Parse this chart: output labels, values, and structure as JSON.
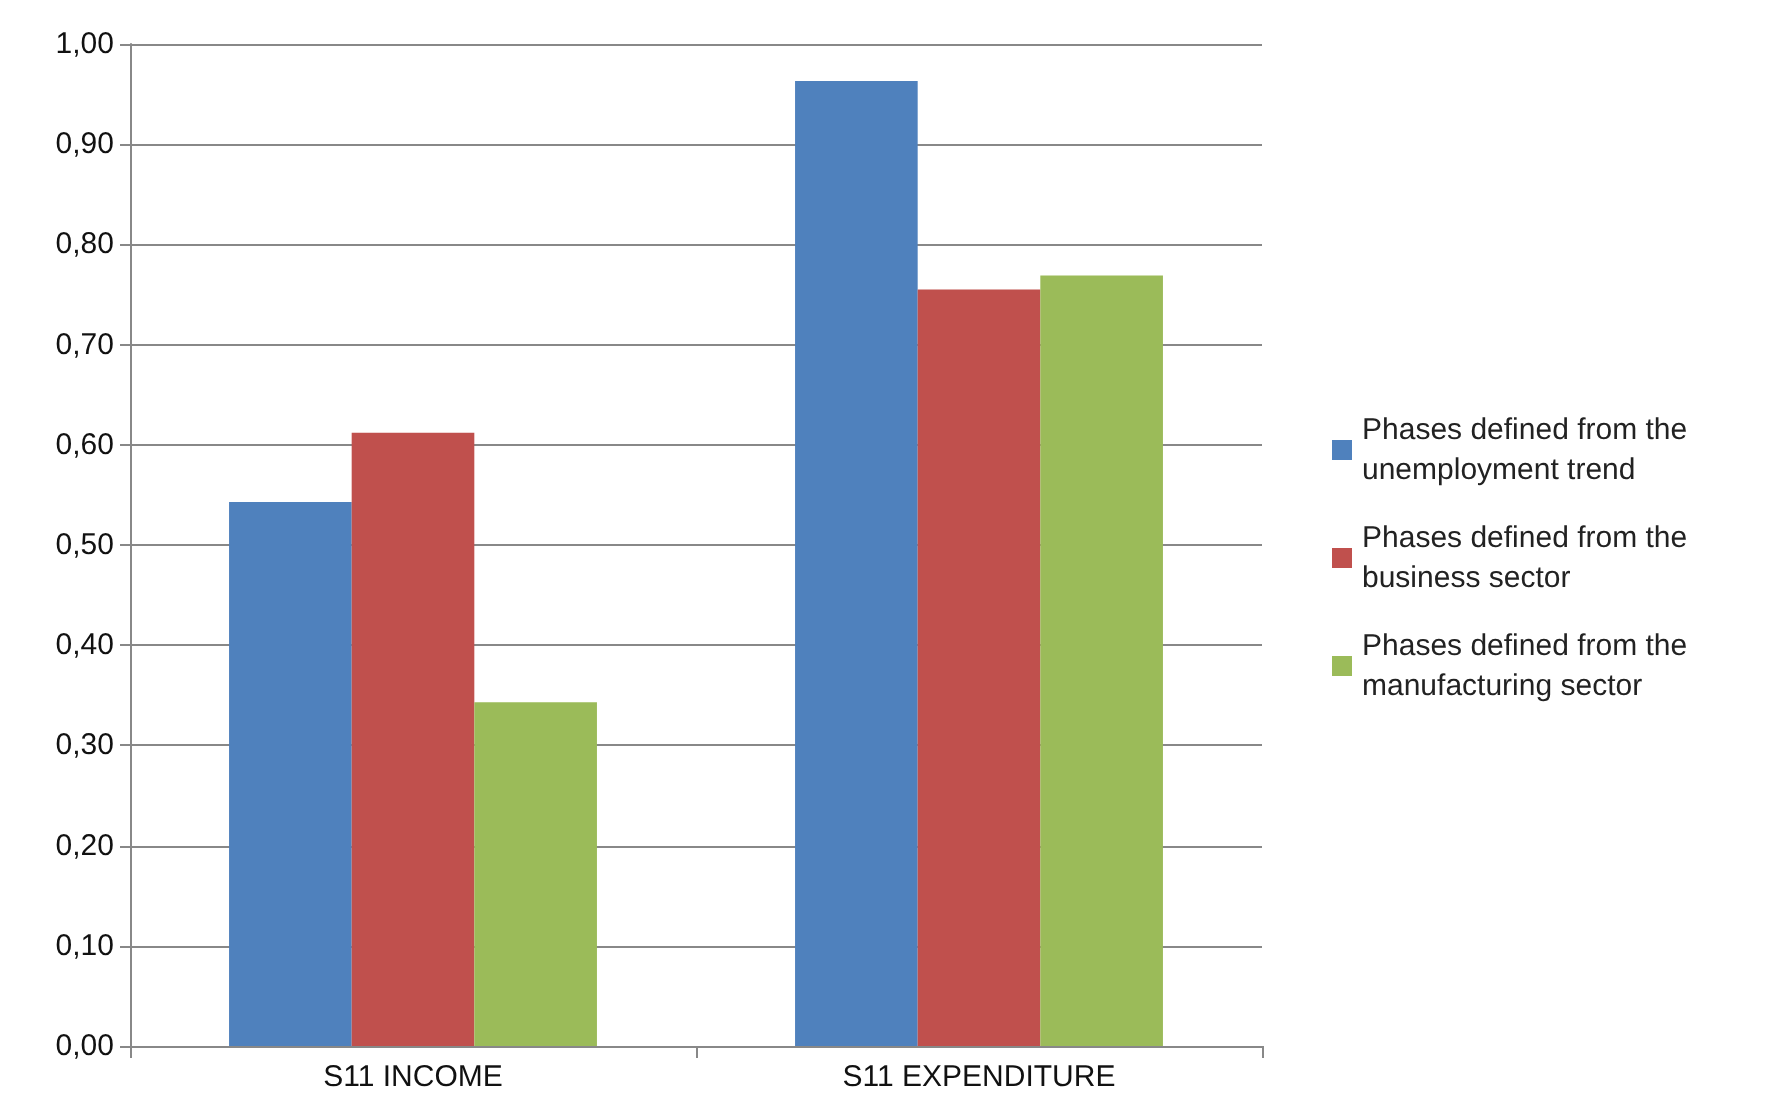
{
  "chart_data": {
    "type": "bar",
    "categories": [
      "S11 INCOME",
      "S11 EXPENDITURE"
    ],
    "series": [
      {
        "name": "Phases defined from the unemployment trend",
        "color": "#4f81bd",
        "values": [
          0.543,
          0.963
        ]
      },
      {
        "name": "Phases defined from the business sector",
        "color": "#c0504d",
        "values": [
          0.612,
          0.755
        ]
      },
      {
        "name": "Phases defined from the manufacturing sector",
        "color": "#9bbb59",
        "values": [
          0.343,
          0.769
        ]
      }
    ],
    "ylim": [
      0,
      1
    ],
    "yticks": [
      {
        "value": 0,
        "label": "0,00"
      },
      {
        "value": 0.1,
        "label": "0,10"
      },
      {
        "value": 0.2,
        "label": "0,20"
      },
      {
        "value": 0.3,
        "label": "0,30"
      },
      {
        "value": 0.4,
        "label": "0,40"
      },
      {
        "value": 0.5,
        "label": "0,50"
      },
      {
        "value": 0.6,
        "label": "0,60"
      },
      {
        "value": 0.7,
        "label": "0,70"
      },
      {
        "value": 0.8,
        "label": "0,80"
      },
      {
        "value": 0.9,
        "label": "0,90"
      },
      {
        "value": 1,
        "label": "1,00"
      }
    ],
    "grid": "y",
    "legend": "right"
  }
}
